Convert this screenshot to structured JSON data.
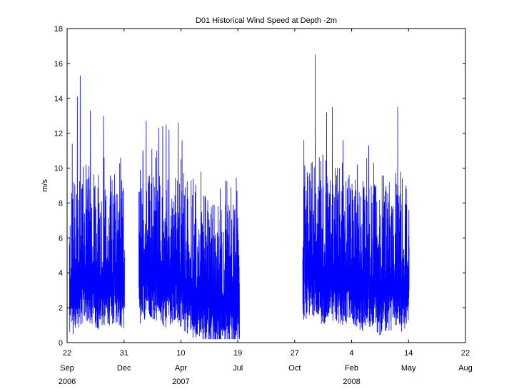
{
  "chart_data": {
    "type": "line",
    "title": "D01 Historical Wind Speed at Depth -2m",
    "xlabel": "",
    "ylabel": "m/s",
    "ylim": [
      0,
      18
    ],
    "yticks": [
      0,
      2,
      4,
      6,
      8,
      10,
      12,
      14,
      16,
      18
    ],
    "xlim": [
      "2006-09-22",
      "2008-08-22"
    ],
    "xticks": [
      {
        "date": "2006-09-22",
        "day": "22",
        "month": "Sep",
        "year": "2006"
      },
      {
        "date": "2006-12-31",
        "day": "31",
        "month": "Dec",
        "year": ""
      },
      {
        "date": "2007-04-10",
        "day": "10",
        "month": "Apr",
        "year": "2007"
      },
      {
        "date": "2007-07-19",
        "day": "19",
        "month": "Jul",
        "year": ""
      },
      {
        "date": "2007-10-27",
        "day": "27",
        "month": "Oct",
        "year": ""
      },
      {
        "date": "2008-02-04",
        "day": "4",
        "month": "Feb",
        "year": "2008"
      },
      {
        "date": "2008-05-14",
        "day": "14",
        "month": "May",
        "year": ""
      },
      {
        "date": "2008-08-22",
        "day": "22",
        "month": "Aug",
        "year": ""
      }
    ],
    "grid": false,
    "color": "#0000ff",
    "segments": [
      {
        "start": "2006-09-26",
        "end": "2007-01-01",
        "base": [
          3.2,
          3.8,
          4.2,
          4.0,
          3.6,
          3.9,
          4.1,
          3.7
        ],
        "peaks": [
          {
            "date": "2006-10-01",
            "value": 11.4
          },
          {
            "date": "2006-10-10",
            "value": 14.1
          },
          {
            "date": "2006-10-15",
            "value": 15.3
          },
          {
            "date": "2006-10-25",
            "value": 10.2
          },
          {
            "date": "2006-11-02",
            "value": 13.3
          },
          {
            "date": "2006-11-09",
            "value": 8.9
          },
          {
            "date": "2006-11-16",
            "value": 9.6
          },
          {
            "date": "2006-11-25",
            "value": 13.0
          },
          {
            "date": "2006-12-10",
            "value": 9.3
          },
          {
            "date": "2006-12-25",
            "value": 10.6
          }
        ]
      },
      {
        "start": "2007-01-26",
        "end": "2007-07-22",
        "base": [
          4.0,
          4.5,
          4.2,
          3.8,
          4.3,
          3.6,
          3.2,
          3.0,
          2.8,
          2.6,
          2.7,
          2.5
        ],
        "peaks": [
          {
            "date": "2007-01-28",
            "value": 8.5
          },
          {
            "date": "2007-02-08",
            "value": 12.7
          },
          {
            "date": "2007-02-18",
            "value": 11.1
          },
          {
            "date": "2007-03-02",
            "value": 12.3
          },
          {
            "date": "2007-03-09",
            "value": 12.4
          },
          {
            "date": "2007-03-15",
            "value": 12.5
          },
          {
            "date": "2007-03-20",
            "value": 12.2
          },
          {
            "date": "2007-04-05",
            "value": 12.6
          },
          {
            "date": "2007-04-12",
            "value": 11.6
          },
          {
            "date": "2007-04-28",
            "value": 9.3
          },
          {
            "date": "2007-05-15",
            "value": 9.8
          },
          {
            "date": "2007-06-05",
            "value": 7.9
          },
          {
            "date": "2007-06-20",
            "value": 7.6
          },
          {
            "date": "2007-07-07",
            "value": 8.9
          }
        ]
      },
      {
        "start": "2007-11-10",
        "end": "2008-05-15",
        "base": [
          4.2,
          4.6,
          4.0,
          4.3,
          3.9,
          4.1,
          3.6,
          3.8,
          3.4,
          3.7,
          3.5,
          3.9
        ],
        "peaks": [
          {
            "date": "2007-11-12",
            "value": 11.6
          },
          {
            "date": "2007-11-25",
            "value": 10.3
          },
          {
            "date": "2007-12-02",
            "value": 16.5
          },
          {
            "date": "2007-12-12",
            "value": 10.4
          },
          {
            "date": "2007-12-22",
            "value": 13.2
          },
          {
            "date": "2008-01-01",
            "value": 13.5
          },
          {
            "date": "2008-01-20",
            "value": 11.6
          },
          {
            "date": "2008-02-14",
            "value": 10.2
          },
          {
            "date": "2008-03-05",
            "value": 11.3
          },
          {
            "date": "2008-04-10",
            "value": 9.2
          },
          {
            "date": "2008-04-25",
            "value": 13.5
          },
          {
            "date": "2008-05-10",
            "value": 8.8
          }
        ]
      }
    ]
  }
}
